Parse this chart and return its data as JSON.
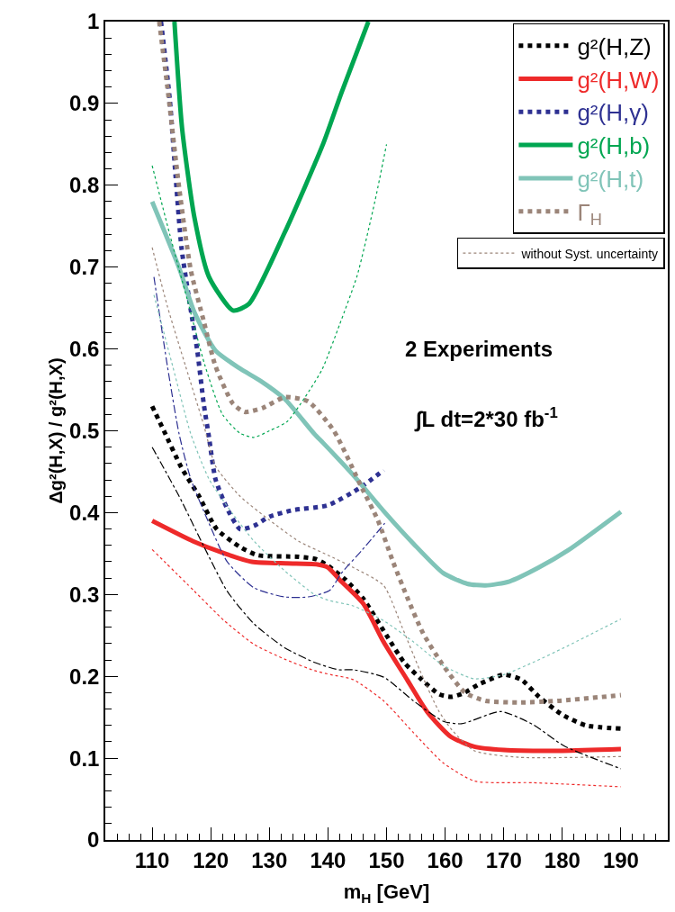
{
  "chart_data": {
    "type": "line",
    "xlabel": "m$_{H}$ [GeV]",
    "ylabel": "Δg²(H,X) / g²(H,X)",
    "xlim": [
      102,
      198
    ],
    "xticks": [
      110,
      120,
      130,
      140,
      150,
      160,
      170,
      180,
      190
    ],
    "ylim": [
      0,
      1
    ],
    "yticks": [
      0,
      0.1,
      0.2,
      0.3,
      0.4,
      0.5,
      0.6,
      0.7,
      0.8,
      0.9,
      1
    ],
    "legend": "top right",
    "annotations": [
      "2 Experiments",
      "∫L dt=2*30 fb$^{-1}$"
    ],
    "series": [
      {
        "name": "g²(H,Z)",
        "color": "#000000",
        "line_style": "dotted",
        "x": [
          110,
          112,
          115,
          118,
          121,
          125,
          128,
          135,
          138,
          140,
          143,
          146,
          150,
          153,
          156,
          159,
          161,
          163,
          166,
          170,
          173,
          176,
          180,
          184,
          190
        ],
        "values": [
          0.53,
          0.5,
          0.455,
          0.42,
          0.38,
          0.358,
          0.348,
          0.346,
          0.343,
          0.335,
          0.318,
          0.295,
          0.25,
          0.217,
          0.196,
          0.178,
          0.175,
          0.179,
          0.191,
          0.202,
          0.196,
          0.175,
          0.153,
          0.14,
          0.136
        ]
      },
      {
        "name": "g²(H,W)",
        "color": "#ee2a2a",
        "line_style": "solid",
        "x": [
          110,
          117,
          122,
          127,
          133,
          138,
          140,
          142,
          146,
          149.5,
          153.5,
          157,
          161,
          165,
          170,
          180,
          190
        ],
        "values": [
          0.39,
          0.365,
          0.351,
          0.34,
          0.338,
          0.337,
          0.333,
          0.318,
          0.289,
          0.242,
          0.196,
          0.156,
          0.126,
          0.114,
          0.11,
          0.109,
          0.111
        ]
      },
      {
        "name": "g²(H,γ)",
        "color": "#2e3192",
        "line_style": "dotted",
        "x": [
          111.5,
          113,
          114,
          115,
          116.5,
          117.7,
          118.8,
          119.7,
          120.8,
          122.8,
          125,
          127.4,
          130,
          134,
          140,
          145.4,
          149.5
        ],
        "values": [
          1.0,
          0.905,
          0.811,
          0.724,
          0.652,
          0.598,
          0.533,
          0.492,
          0.441,
          0.405,
          0.38,
          0.384,
          0.395,
          0.403,
          0.409,
          0.43,
          0.452
        ]
      },
      {
        "name": "g²(H,b)",
        "color": "#00a651",
        "line_style": "solid",
        "x": [
          113.8,
          115.1,
          117.2,
          119.7,
          123.8,
          126.5,
          132.6,
          139.2,
          142.3,
          146.9
        ],
        "values": [
          1.0,
          0.87,
          0.761,
          0.688,
          0.647,
          0.655,
          0.742,
          0.851,
          0.913,
          1.0
        ]
      },
      {
        "name": "g²(H,t)",
        "color": "#80c4b8",
        "line_style": "solid",
        "x": [
          110,
          114.6,
          117.2,
          120.8,
          125,
          128.5,
          132.6,
          137.7,
          139.2,
          144.3,
          149.5,
          154.6,
          159.7,
          163.8,
          166.9,
          171,
          176,
          181,
          190
        ],
        "values": [
          0.78,
          0.699,
          0.645,
          0.598,
          0.576,
          0.561,
          0.539,
          0.496,
          0.485,
          0.446,
          0.402,
          0.362,
          0.326,
          0.313,
          0.311,
          0.316,
          0.333,
          0.354,
          0.401
        ]
      },
      {
        "name": "Γ$_{H}$",
        "color": "#9b8579",
        "line_style": "dotted",
        "x": [
          111.2,
          112.6,
          114.6,
          116.6,
          118.8,
          120.8,
          123.8,
          125.8,
          128.9,
          132.6,
          136.6,
          141,
          145.8,
          148.5,
          151.1,
          153.5,
          156.2,
          159.7,
          163.4,
          166.9,
          172.6,
          179.2,
          190
        ],
        "values": [
          1.0,
          0.92,
          0.797,
          0.696,
          0.634,
          0.579,
          0.533,
          0.523,
          0.528,
          0.541,
          0.536,
          0.5,
          0.43,
          0.391,
          0.34,
          0.297,
          0.253,
          0.213,
          0.18,
          0.17,
          0.168,
          0.17,
          0.177
        ]
      },
      {
        "name": "without Syst. uncertainty",
        "color": "#9b8579",
        "line_style": "dotted",
        "x": [
          110,
          112.6,
          115.7,
          118.8,
          120.8,
          125,
          130,
          135,
          140,
          144.3,
          149.5,
          152.6,
          155.7,
          158.8,
          161.2,
          165,
          172.6,
          190
        ],
        "values": [
          0.724,
          0.652,
          0.579,
          0.507,
          0.457,
          0.42,
          0.391,
          0.365,
          0.348,
          0.333,
          0.311,
          0.261,
          0.207,
          0.159,
          0.134,
          0.109,
          0.101,
          0.102
        ]
      },
      {
        "color": "#00a651",
        "line_style": "dotted",
        "x": [
          110,
          113,
          116,
          119,
          122,
          125,
          127.4,
          130,
          133,
          136,
          139,
          142,
          145,
          148,
          150
        ],
        "values": [
          0.824,
          0.74,
          0.66,
          0.58,
          0.52,
          0.497,
          0.492,
          0.5,
          0.511,
          0.54,
          0.575,
          0.63,
          0.69,
          0.78,
          0.85
        ]
      },
      {
        "color": "#ee2a2a",
        "line_style": "dotted",
        "x": [
          110,
          117.2,
          122.3,
          127.4,
          132.6,
          137.7,
          140.5,
          144.3,
          149.5,
          154.6,
          159.7,
          165,
          175,
          190
        ],
        "values": [
          0.355,
          0.304,
          0.268,
          0.239,
          0.221,
          0.207,
          0.202,
          0.196,
          0.17,
          0.131,
          0.094,
          0.072,
          0.07,
          0.065
        ]
      },
      {
        "color": "#000000",
        "line_style": "dashed",
        "x": [
          110,
          114.6,
          118.8,
          122.8,
          127.4,
          132.6,
          137.7,
          141.8,
          144.3,
          149.5,
          154.6,
          159.7,
          162.8,
          169.5,
          175,
          180.3,
          190
        ],
        "values": [
          0.48,
          0.42,
          0.359,
          0.304,
          0.264,
          0.235,
          0.217,
          0.208,
          0.208,
          0.199,
          0.17,
          0.145,
          0.142,
          0.157,
          0.141,
          0.115,
          0.087
        ]
      },
      {
        "color": "#2e3192",
        "line_style": "dashed",
        "x": [
          110.3,
          112.6,
          114.6,
          116.6,
          119.7,
          122.8,
          127.4,
          132.6,
          136.6,
          140.3,
          142.3,
          145.8,
          149.7
        ],
        "values": [
          0.688,
          0.579,
          0.496,
          0.441,
          0.387,
          0.34,
          0.308,
          0.297,
          0.297,
          0.305,
          0.326,
          0.354,
          0.387
        ]
      },
      {
        "color": "#80c4b8",
        "line_style": "dotted",
        "x": [
          110.3,
          113.5,
          116.6,
          119.7,
          123.8,
          127.4,
          132.6,
          137.7,
          140,
          144.3,
          149.5,
          154.6,
          159.7,
          164.9,
          170,
          175,
          180.3,
          190
        ],
        "values": [
          0.666,
          0.579,
          0.496,
          0.441,
          0.398,
          0.365,
          0.329,
          0.3,
          0.293,
          0.286,
          0.268,
          0.242,
          0.213,
          0.197,
          0.202,
          0.217,
          0.235,
          0.27
        ]
      }
    ]
  }
}
